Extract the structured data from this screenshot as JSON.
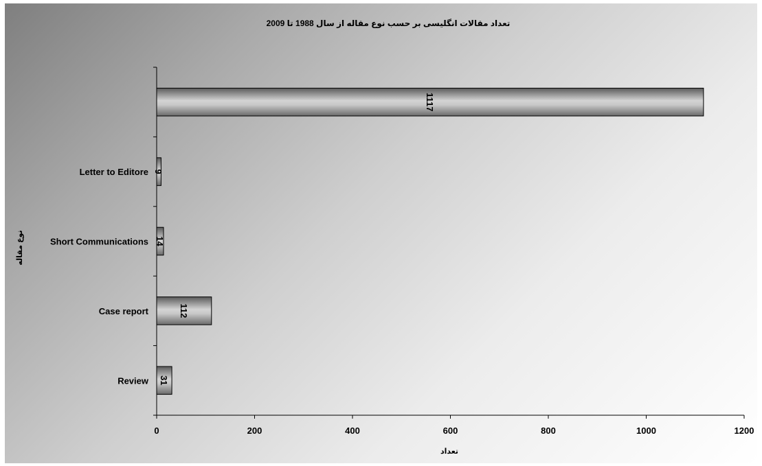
{
  "chart_data": {
    "type": "bar",
    "orientation": "horizontal",
    "title": "تعداد مقالات انگلیسی بر حسب نوع مقاله از سال 1988 تا 2009",
    "xlabel": "تعداد",
    "ylabel": "نوع مقاله",
    "categories": [
      "Review",
      "Case report",
      "Short Communications",
      "Letter to Editore",
      ""
    ],
    "values": [
      31,
      112,
      14,
      9,
      1117
    ],
    "data_labels": [
      "31",
      "112",
      "14",
      "9",
      "1117"
    ],
    "xlim": [
      0,
      1200
    ],
    "xticks": [
      "0",
      "200",
      "400",
      "600",
      "800",
      "1000",
      "1200"
    ],
    "grid": false,
    "legend": "none",
    "bar_fill": "#a0a0a0",
    "background_gradient": [
      "#7f7f7f",
      "#ffffff"
    ]
  }
}
